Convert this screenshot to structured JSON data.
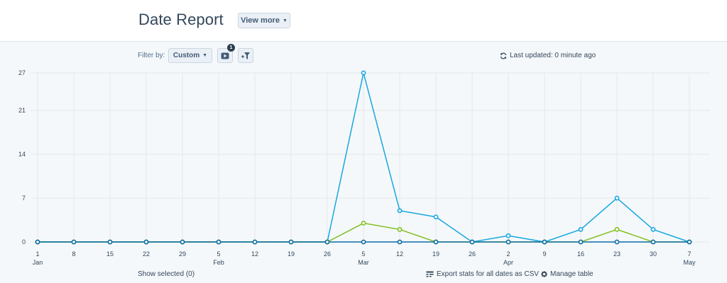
{
  "header": {
    "title": "Date Report",
    "view_more_label": "View more"
  },
  "toolbar": {
    "filter_label": "Filter by:",
    "filter_value": "Custom",
    "video_badge_count": "1",
    "last_updated": "Last updated: 0 minute ago"
  },
  "footer": {
    "show_selected": "Show selected (0)",
    "export_label": "Export stats for all dates as CSV",
    "manage_label": "Manage table"
  },
  "colors": {
    "blue_series": "#18a7e0",
    "green_series": "#7fbf1e",
    "dark_series": "#0d6aa8",
    "grid": "#e5e8eb"
  },
  "chart_data": {
    "type": "line",
    "x": [
      "1",
      "8",
      "15",
      "22",
      "29",
      "5",
      "12",
      "19",
      "26",
      "5",
      "12",
      "19",
      "26",
      "2",
      "9",
      "16",
      "23",
      "30",
      "7"
    ],
    "x_month_labels": [
      "Jan",
      "",
      "",
      "",
      "",
      "Feb",
      "",
      "",
      "",
      "Mar",
      "",
      "",
      "",
      "Apr",
      "",
      "",
      "",
      "",
      "May"
    ],
    "y_ticks": [
      0,
      7,
      14,
      21,
      27
    ],
    "ylim": [
      0,
      27
    ],
    "grid": true,
    "series": [
      {
        "values": [
          0,
          0,
          0,
          0,
          0,
          0,
          0,
          0,
          0,
          27,
          5,
          4,
          0,
          1,
          0,
          2,
          7,
          2,
          0
        ]
      },
      {
        "values": [
          0,
          0,
          0,
          0,
          0,
          0,
          0,
          0,
          0,
          3,
          2,
          0,
          0,
          0,
          0,
          0,
          2,
          0,
          0
        ]
      },
      {
        "values": [
          0,
          0,
          0,
          0,
          0,
          0,
          0,
          0,
          0,
          0,
          0,
          0,
          0,
          0,
          0,
          0,
          0,
          0,
          0
        ]
      }
    ]
  }
}
